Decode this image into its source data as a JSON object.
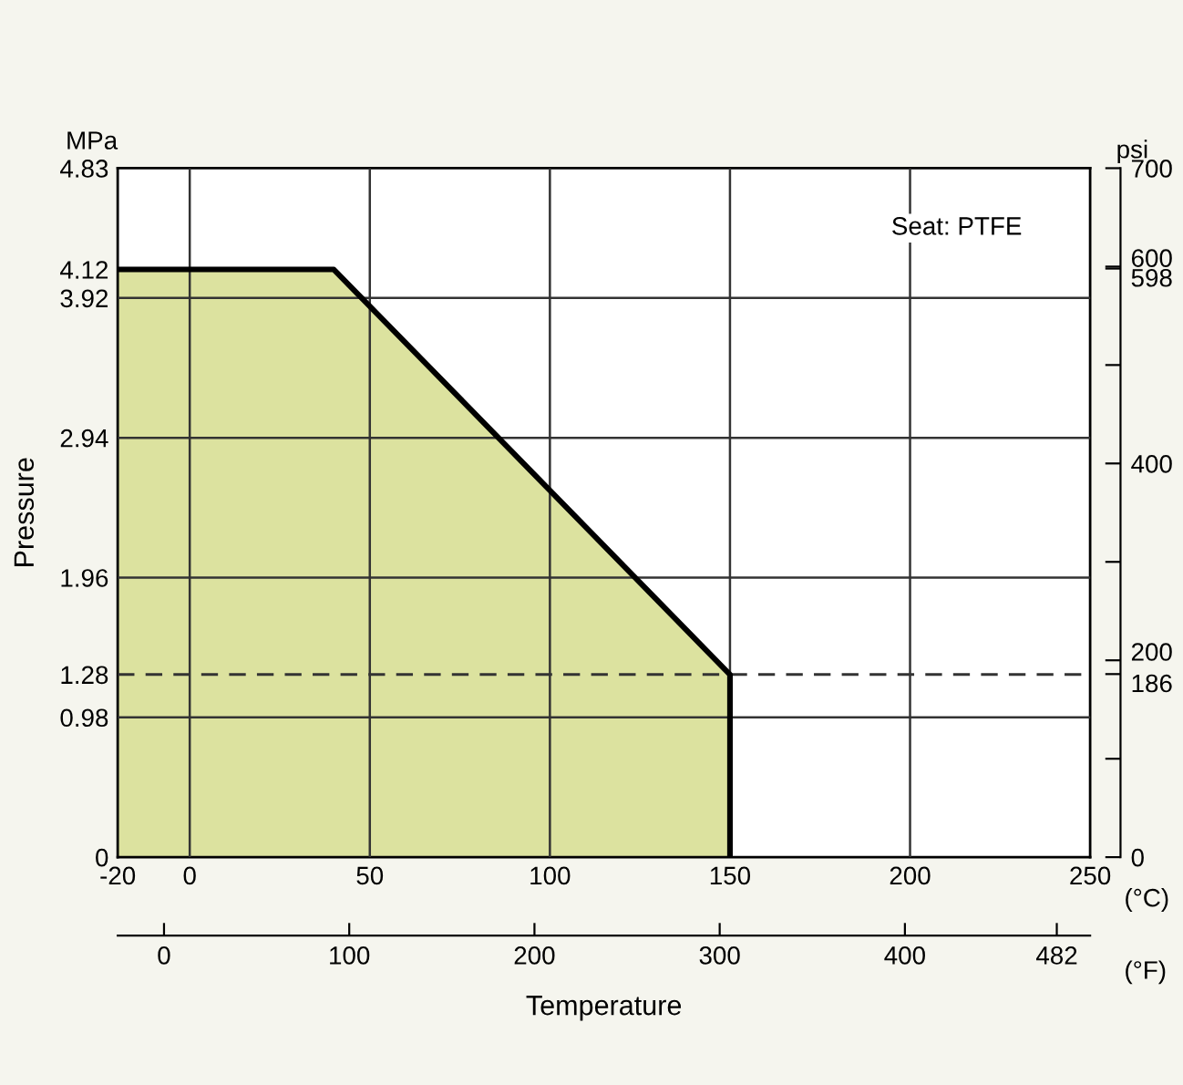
{
  "chart_data": {
    "type": "area",
    "x": [
      -20,
      40,
      150,
      150
    ],
    "series": [
      {
        "color": "#dce29f",
        "values": [
          4.12,
          4.12,
          1.28,
          0
        ]
      }
    ],
    "xlabel": "Temperature",
    "ylabel": "Pressure",
    "y2label": "psi",
    "annotations": [
      "MPa",
      "(°C)",
      "(°F)",
      "Seat: PTFE"
    ],
    "xlim": [
      -20,
      250
    ],
    "xticks": [
      {
        "value": -20,
        "label": "-20"
      },
      0,
      50,
      100,
      150,
      200,
      {
        "value": 250,
        "label": "250"
      }
    ],
    "ylim": [
      0,
      4.83
    ],
    "yticks": [
      {
        "value": 0,
        "label": "0"
      },
      0.98,
      {
        "value": 1.28,
        "label": "1.28"
      },
      1.96,
      2.94,
      3.92,
      {
        "value": 4.12,
        "label": "4.12"
      },
      {
        "value": 4.83,
        "label": "4.83"
      }
    ],
    "y2lim": [
      0,
      700
    ],
    "y2ticks": [
      0,
      {
        "value": 100,
        "label": null
      },
      186,
      200,
      {
        "value": 300,
        "label": null
      },
      400,
      {
        "value": 500,
        "label": null
      },
      598,
      600,
      700
    ],
    "x2lim": [
      -25,
      500
    ],
    "x2ticks": [
      0,
      100,
      200,
      300,
      400,
      482
    ],
    "ref_lines": [
      {
        "axis": "y",
        "value": 1.28,
        "color": "#333333",
        "line_style": "dashed"
      }
    ],
    "grid": true,
    "legend": false
  }
}
